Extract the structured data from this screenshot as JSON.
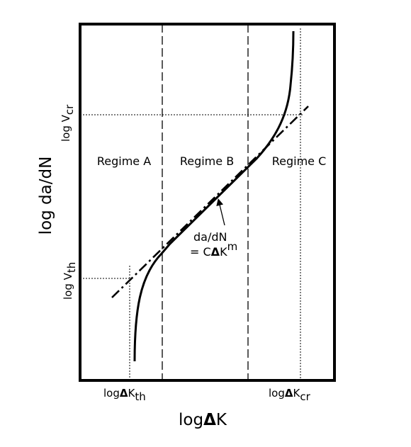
{
  "axes": {
    "x_label": "log",
    "x_symbol": "Δ",
    "x_label_tail": "K",
    "y_label": "log da/dN",
    "x_tick_th_prefix": "log",
    "x_tick_th_symbol": "Δ",
    "x_tick_th_main": "K",
    "x_tick_th_sub": "th",
    "x_tick_cr_prefix": "log",
    "x_tick_cr_symbol": "Δ",
    "x_tick_cr_main": "K",
    "x_tick_cr_sub": "cr",
    "y_tick_cr_main": "log V",
    "y_tick_cr_sub": "cr",
    "y_tick_th_main": "log V",
    "y_tick_th_sub": "th"
  },
  "regimes": [
    "Regime A",
    "Regime B",
    "Regime C"
  ],
  "equation": {
    "line1": "da/dN",
    "line2_prefix": "= C",
    "line2_symbol": "Δ",
    "line2_main": "K",
    "line2_exp": "m"
  }
}
